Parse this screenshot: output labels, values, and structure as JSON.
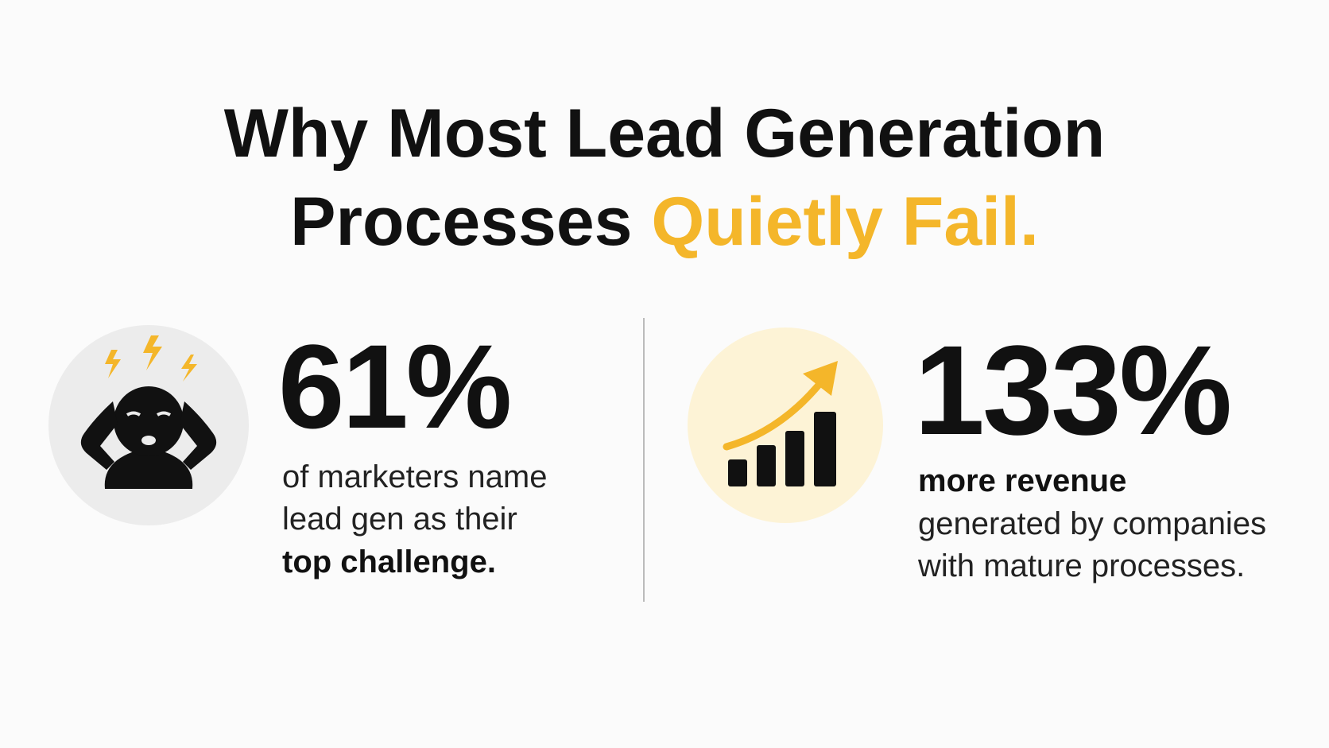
{
  "title": {
    "line1": "Why Most Lead Generation",
    "line2_plain": "Processes",
    "line2_highlight": "Quietly Fail."
  },
  "stats": [
    {
      "figure": "61%",
      "lines": [
        "of marketers name",
        "lead gen as their"
      ],
      "emphasis": "top challenge."
    },
    {
      "figure": "133%",
      "emphasis": "more revenue",
      "lines": [
        "generated by companies",
        "with mature processes."
      ]
    }
  ]
}
